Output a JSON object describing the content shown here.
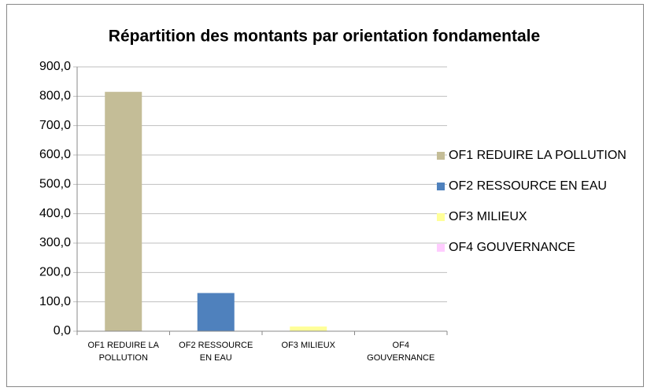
{
  "chart_data": {
    "type": "bar",
    "title": "Répartition des montants par orientation fondamentale",
    "categories": [
      "OF1 REDUIRE LA POLLUTION",
      "OF2 RESSOURCE EN EAU",
      "OF3 MILIEUX",
      "OF4 GOUVERNANCE"
    ],
    "values": [
      815,
      130,
      16,
      0
    ],
    "colors": [
      "#c4bd97",
      "#4f81bd",
      "#ffff99",
      "#ffccff"
    ],
    "ylim": [
      0,
      900
    ],
    "yticks": [
      {
        "value": 0,
        "label": "0,0"
      },
      {
        "value": 100,
        "label": "100,0"
      },
      {
        "value": 200,
        "label": "200,0"
      },
      {
        "value": 300,
        "label": "300,0"
      },
      {
        "value": 400,
        "label": "400,0"
      },
      {
        "value": 500,
        "label": "500,0"
      },
      {
        "value": 600,
        "label": "600,0"
      },
      {
        "value": 700,
        "label": "700,0"
      },
      {
        "value": 800,
        "label": "800,0"
      },
      {
        "value": 900,
        "label": "900,0"
      }
    ],
    "grid": true,
    "legend": "right"
  }
}
